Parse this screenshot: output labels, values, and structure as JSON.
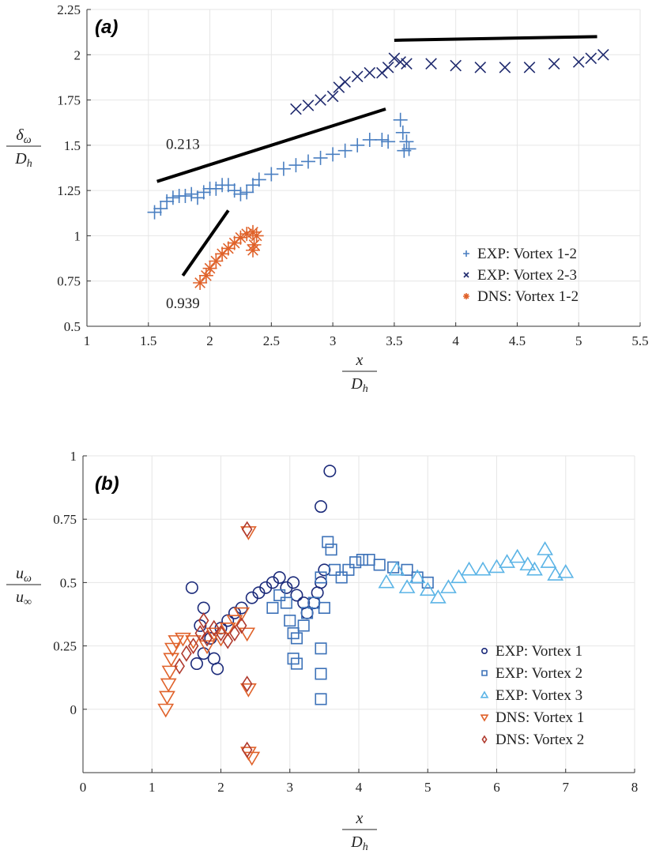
{
  "chart_data": [
    {
      "type": "scatter",
      "panel_label": "(a)",
      "xlabel": {
        "num": "x",
        "den": "D",
        "den_sub": "h"
      },
      "ylabel": {
        "num": "δ",
        "num_sub": "ω",
        "den": "D",
        "den_sub": "h"
      },
      "xlim": [
        1,
        5.5
      ],
      "ylim": [
        0.5,
        2.25
      ],
      "xticks": [
        "1",
        "1.5",
        "2",
        "2.5",
        "3",
        "3.5",
        "4",
        "4.5",
        "5",
        "5.5"
      ],
      "yticks": [
        "0.5",
        "0.75",
        "1",
        "1.25",
        "1.5",
        "1.75",
        "2",
        "2.25"
      ],
      "grid": true,
      "legend_position": "bottom-right",
      "series": [
        {
          "name": "EXP: Vortex 1-2",
          "marker": "plus",
          "color": "#4a7fc1",
          "points": [
            [
              1.55,
              1.13
            ],
            [
              1.6,
              1.15
            ],
            [
              1.65,
              1.19
            ],
            [
              1.7,
              1.21
            ],
            [
              1.75,
              1.22
            ],
            [
              1.8,
              1.22
            ],
            [
              1.85,
              1.23
            ],
            [
              1.9,
              1.21
            ],
            [
              1.95,
              1.24
            ],
            [
              2.0,
              1.26
            ],
            [
              2.05,
              1.26
            ],
            [
              2.1,
              1.28
            ],
            [
              2.15,
              1.28
            ],
            [
              2.2,
              1.25
            ],
            [
              2.25,
              1.23
            ],
            [
              2.3,
              1.24
            ],
            [
              2.35,
              1.28
            ],
            [
              2.4,
              1.31
            ],
            [
              2.5,
              1.34
            ],
            [
              2.6,
              1.37
            ],
            [
              2.7,
              1.39
            ],
            [
              2.8,
              1.41
            ],
            [
              2.9,
              1.43
            ],
            [
              3.0,
              1.45
            ],
            [
              3.1,
              1.47
            ],
            [
              3.2,
              1.5
            ],
            [
              3.3,
              1.53
            ],
            [
              3.4,
              1.53
            ],
            [
              3.45,
              1.52
            ],
            [
              3.55,
              1.64
            ],
            [
              3.57,
              1.57
            ],
            [
              3.6,
              1.52
            ],
            [
              3.58,
              1.47
            ],
            [
              3.62,
              1.48
            ]
          ]
        },
        {
          "name": "EXP: Vortex 2-3",
          "marker": "cross",
          "color": "#1f2a6e",
          "points": [
            [
              2.7,
              1.7
            ],
            [
              2.8,
              1.72
            ],
            [
              2.9,
              1.75
            ],
            [
              3.0,
              1.77
            ],
            [
              3.05,
              1.82
            ],
            [
              3.1,
              1.85
            ],
            [
              3.2,
              1.88
            ],
            [
              3.3,
              1.9
            ],
            [
              3.4,
              1.9
            ],
            [
              3.45,
              1.93
            ],
            [
              3.5,
              1.98
            ],
            [
              3.55,
              1.96
            ],
            [
              3.6,
              1.95
            ],
            [
              3.8,
              1.95
            ],
            [
              4.0,
              1.94
            ],
            [
              4.2,
              1.93
            ],
            [
              4.4,
              1.93
            ],
            [
              4.6,
              1.93
            ],
            [
              4.8,
              1.95
            ],
            [
              5.0,
              1.96
            ],
            [
              5.1,
              1.98
            ],
            [
              5.2,
              2.0
            ]
          ]
        },
        {
          "name": "DNS: Vortex 1-2",
          "marker": "asterisk",
          "color": "#e0622a",
          "points": [
            [
              1.92,
              0.74
            ],
            [
              1.97,
              0.78
            ],
            [
              2.0,
              0.82
            ],
            [
              2.05,
              0.86
            ],
            [
              2.1,
              0.9
            ],
            [
              2.15,
              0.93
            ],
            [
              2.2,
              0.96
            ],
            [
              2.25,
              0.99
            ],
            [
              2.3,
              1.01
            ],
            [
              2.35,
              1.02
            ],
            [
              2.38,
              1.0
            ],
            [
              2.36,
              0.95
            ],
            [
              2.35,
              0.92
            ]
          ]
        }
      ],
      "fit_lines": [
        {
          "label": "0.213",
          "from": [
            1.57,
            1.3
          ],
          "to": [
            3.43,
            1.7
          ],
          "label_at": [
            1.78,
            1.48
          ]
        },
        {
          "label": "0.939",
          "from": [
            1.78,
            0.78
          ],
          "to": [
            2.15,
            1.14
          ],
          "label_at": [
            1.78,
            0.6
          ]
        },
        {
          "label": "",
          "from": [
            3.5,
            2.08
          ],
          "to": [
            5.15,
            2.1
          ]
        }
      ]
    },
    {
      "type": "scatter",
      "panel_label": "(b)",
      "xlabel": {
        "num": "x",
        "den": "D",
        "den_sub": "h"
      },
      "ylabel": {
        "num": "u",
        "num_sub": "ω",
        "den": "u",
        "den_sub": "∞"
      },
      "xlim": [
        0,
        8
      ],
      "ylim": [
        -0.25,
        1
      ],
      "xticks": [
        "0",
        "1",
        "2",
        "3",
        "4",
        "5",
        "6",
        "7",
        "8"
      ],
      "yticks": [
        "0",
        "0.25",
        "0.5",
        "0.75",
        "1"
      ],
      "grid": true,
      "legend_position": "bottom-right",
      "series": [
        {
          "name": "EXP: Vortex 1",
          "marker": "circle",
          "color": "#1b2a7a",
          "points": [
            [
              1.58,
              0.48
            ],
            [
              1.7,
              0.33
            ],
            [
              1.75,
              0.4
            ],
            [
              1.65,
              0.18
            ],
            [
              1.75,
              0.22
            ],
            [
              1.9,
              0.2
            ],
            [
              1.95,
              0.16
            ],
            [
              1.85,
              0.28
            ],
            [
              2.0,
              0.32
            ],
            [
              2.1,
              0.35
            ],
            [
              2.2,
              0.38
            ],
            [
              2.3,
              0.4
            ],
            [
              2.45,
              0.44
            ],
            [
              2.55,
              0.46
            ],
            [
              2.65,
              0.48
            ],
            [
              2.75,
              0.5
            ],
            [
              2.85,
              0.52
            ],
            [
              2.95,
              0.48
            ],
            [
              3.05,
              0.5
            ],
            [
              3.1,
              0.45
            ],
            [
              3.2,
              0.42
            ],
            [
              3.25,
              0.38
            ],
            [
              3.35,
              0.42
            ],
            [
              3.4,
              0.46
            ],
            [
              3.45,
              0.5
            ],
            [
              3.5,
              0.55
            ],
            [
              3.45,
              0.8
            ],
            [
              3.58,
              0.94
            ]
          ]
        },
        {
          "name": "EXP: Vortex 2",
          "marker": "square",
          "color": "#3d72b8",
          "points": [
            [
              2.75,
              0.4
            ],
            [
              2.85,
              0.45
            ],
            [
              2.95,
              0.42
            ],
            [
              3.0,
              0.35
            ],
            [
              3.05,
              0.3
            ],
            [
              3.1,
              0.28
            ],
            [
              3.05,
              0.2
            ],
            [
              3.1,
              0.18
            ],
            [
              3.2,
              0.33
            ],
            [
              3.25,
              0.38
            ],
            [
              3.35,
              0.42
            ],
            [
              3.45,
              0.52
            ],
            [
              3.5,
              0.4
            ],
            [
              3.45,
              0.24
            ],
            [
              3.45,
              0.14
            ],
            [
              3.45,
              0.04
            ],
            [
              3.55,
              0.66
            ],
            [
              3.6,
              0.63
            ],
            [
              3.65,
              0.55
            ],
            [
              3.75,
              0.52
            ],
            [
              3.85,
              0.55
            ],
            [
              3.95,
              0.58
            ],
            [
              4.05,
              0.59
            ],
            [
              4.15,
              0.59
            ],
            [
              4.3,
              0.57
            ],
            [
              4.5,
              0.56
            ],
            [
              4.7,
              0.55
            ],
            [
              4.85,
              0.52
            ],
            [
              5.0,
              0.5
            ]
          ]
        },
        {
          "name": "EXP: Vortex 3",
          "marker": "triangle-up",
          "color": "#5bb4e6",
          "points": [
            [
              4.4,
              0.5
            ],
            [
              4.55,
              0.55
            ],
            [
              4.7,
              0.48
            ],
            [
              4.85,
              0.52
            ],
            [
              5.0,
              0.47
            ],
            [
              5.15,
              0.44
            ],
            [
              5.3,
              0.48
            ],
            [
              5.45,
              0.52
            ],
            [
              5.6,
              0.55
            ],
            [
              5.8,
              0.55
            ],
            [
              6.0,
              0.56
            ],
            [
              6.15,
              0.58
            ],
            [
              6.3,
              0.6
            ],
            [
              6.45,
              0.57
            ],
            [
              6.55,
              0.55
            ],
            [
              6.7,
              0.63
            ],
            [
              6.75,
              0.58
            ],
            [
              6.85,
              0.53
            ],
            [
              7.0,
              0.54
            ]
          ]
        },
        {
          "name": "DNS: Vortex 1",
          "marker": "triangle-down",
          "color": "#e0622a",
          "points": [
            [
              1.2,
              0.0
            ],
            [
              1.22,
              0.05
            ],
            [
              1.24,
              0.1
            ],
            [
              1.26,
              0.15
            ],
            [
              1.28,
              0.2
            ],
            [
              1.3,
              0.24
            ],
            [
              1.35,
              0.27
            ],
            [
              1.45,
              0.28
            ],
            [
              1.6,
              0.27
            ],
            [
              1.8,
              0.25
            ],
            [
              1.9,
              0.3
            ],
            [
              2.0,
              0.28
            ],
            [
              2.1,
              0.32
            ],
            [
              2.2,
              0.35
            ],
            [
              2.3,
              0.38
            ],
            [
              2.38,
              0.3
            ],
            [
              2.4,
              0.7
            ],
            [
              2.4,
              0.08
            ],
            [
              2.4,
              -0.17
            ],
            [
              2.45,
              -0.19
            ]
          ]
        },
        {
          "name": "DNS: Vortex 2",
          "marker": "diamond",
          "color": "#b03a2e",
          "points": [
            [
              1.4,
              0.17
            ],
            [
              1.5,
              0.22
            ],
            [
              1.6,
              0.25
            ],
            [
              1.7,
              0.3
            ],
            [
              1.75,
              0.35
            ],
            [
              1.8,
              0.28
            ],
            [
              1.9,
              0.32
            ],
            [
              2.0,
              0.3
            ],
            [
              2.1,
              0.27
            ],
            [
              2.2,
              0.3
            ],
            [
              2.3,
              0.33
            ],
            [
              2.38,
              0.71
            ],
            [
              2.38,
              0.1
            ],
            [
              2.38,
              -0.16
            ]
          ]
        }
      ],
      "fit_lines": []
    }
  ]
}
